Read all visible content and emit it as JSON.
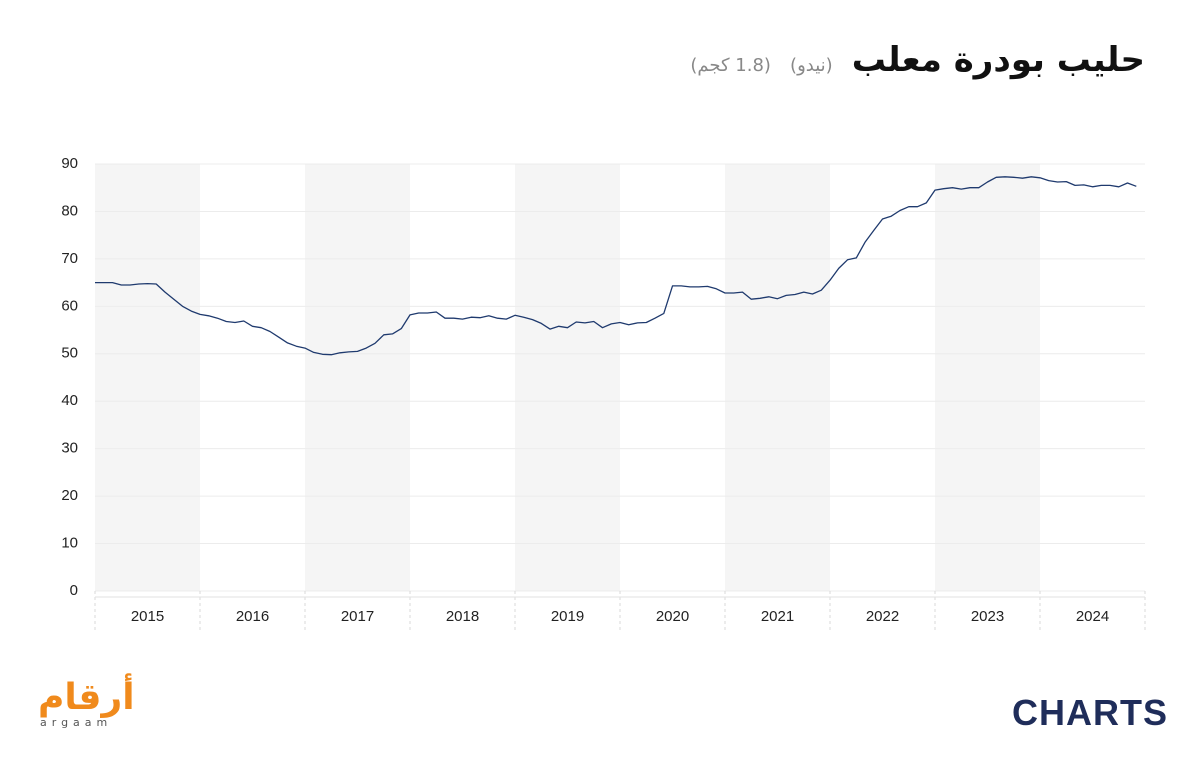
{
  "chart_data": {
    "type": "line",
    "title": "حليب بودرة معلب",
    "subtitles": [
      "(نيدو)",
      "(1.8 كجم)"
    ],
    "xlim": [
      2015,
      2025
    ],
    "xticks": [
      {
        "value": 2015,
        "label": "2015"
      },
      {
        "value": 2016,
        "label": "2016"
      },
      {
        "value": 2017,
        "label": "2017"
      },
      {
        "value": 2018,
        "label": "2018"
      },
      {
        "value": 2019,
        "label": "2019"
      },
      {
        "value": 2020,
        "label": "2020"
      },
      {
        "value": 2021,
        "label": "2021"
      },
      {
        "value": 2022,
        "label": "2022"
      },
      {
        "value": 2023,
        "label": "2023"
      },
      {
        "value": 2024,
        "label": "2024"
      }
    ],
    "ylim": [
      0,
      90
    ],
    "yticks": [
      0,
      10,
      20,
      30,
      40,
      50,
      60,
      70,
      80,
      90
    ],
    "grid": true,
    "x": [
      2015,
      2015.083,
      2015.167,
      2015.25,
      2015.333,
      2015.417,
      2015.5,
      2015.583,
      2015.667,
      2015.75,
      2015.833,
      2015.917,
      2016,
      2016.083,
      2016.167,
      2016.25,
      2016.333,
      2016.417,
      2016.5,
      2016.583,
      2016.667,
      2016.75,
      2016.833,
      2016.917,
      2017,
      2017.083,
      2017.167,
      2017.25,
      2017.333,
      2017.417,
      2017.5,
      2017.583,
      2017.667,
      2017.75,
      2017.833,
      2017.917,
      2018,
      2018.083,
      2018.167,
      2018.25,
      2018.333,
      2018.417,
      2018.5,
      2018.583,
      2018.667,
      2018.75,
      2018.833,
      2018.917,
      2019,
      2019.083,
      2019.167,
      2019.25,
      2019.333,
      2019.417,
      2019.5,
      2019.583,
      2019.667,
      2019.75,
      2019.833,
      2019.917,
      2020,
      2020.083,
      2020.167,
      2020.25,
      2020.333,
      2020.417,
      2020.5,
      2020.583,
      2020.667,
      2020.75,
      2020.833,
      2020.917,
      2021,
      2021.083,
      2021.167,
      2021.25,
      2021.333,
      2021.417,
      2021.5,
      2021.583,
      2021.667,
      2021.75,
      2021.833,
      2021.917,
      2022,
      2022.083,
      2022.167,
      2022.25,
      2022.333,
      2022.417,
      2022.5,
      2022.583,
      2022.667,
      2022.75,
      2022.833,
      2022.917,
      2023,
      2023.083,
      2023.167,
      2023.25,
      2023.333,
      2023.417,
      2023.5,
      2023.583,
      2023.667,
      2023.75,
      2023.833,
      2023.917,
      2024,
      2024.083,
      2024.167,
      2024.25,
      2024.333,
      2024.417,
      2024.5,
      2024.583,
      2024.667,
      2024.75,
      2024.833,
      2024.917
    ],
    "series": [
      {
        "color": "#1f3a6e",
        "values": [
          65,
          65,
          65,
          64.5,
          64.5,
          64.7,
          64.8,
          64.7,
          63,
          61.5,
          60,
          59,
          58.3,
          58,
          57.5,
          56.8,
          56.6,
          56.9,
          55.8,
          55.5,
          54.7,
          53.5,
          52.3,
          51.6,
          51.2,
          50.3,
          49.9,
          49.8,
          50.2,
          50.4,
          50.5,
          51.2,
          52.2,
          54,
          54.2,
          55.3,
          58.2,
          58.6,
          58.6,
          58.8,
          57.5,
          57.5,
          57.3,
          57.7,
          57.6,
          58,
          57.5,
          57.3,
          58.1,
          57.7,
          57.2,
          56.4,
          55.2,
          55.8,
          55.5,
          56.7,
          56.5,
          56.8,
          55.5,
          56.3,
          56.6,
          56.1,
          56.5,
          56.6,
          57.5,
          58.5,
          64.3,
          64.3,
          64.1,
          64.1,
          64.2,
          63.7,
          62.8,
          62.8,
          63,
          61.5,
          61.7,
          62,
          61.6,
          62.3,
          62.5,
          63,
          62.6,
          63.4,
          65.5,
          68,
          69.8,
          70.2,
          73.5,
          76,
          78.4,
          79,
          80.2,
          81,
          81,
          81.8,
          84.5,
          84.8,
          85,
          84.7,
          85,
          85,
          86.2,
          87.2,
          87.3,
          87.2,
          87,
          87.3,
          87.1,
          86.5,
          86.2,
          86.3,
          85.5,
          85.6,
          85.2,
          85.5,
          85.5,
          85.2,
          86,
          85.3
        ]
      }
    ]
  },
  "branding": {
    "left": "أرقام",
    "left_sub": "argaam",
    "right": "CHARTS"
  }
}
